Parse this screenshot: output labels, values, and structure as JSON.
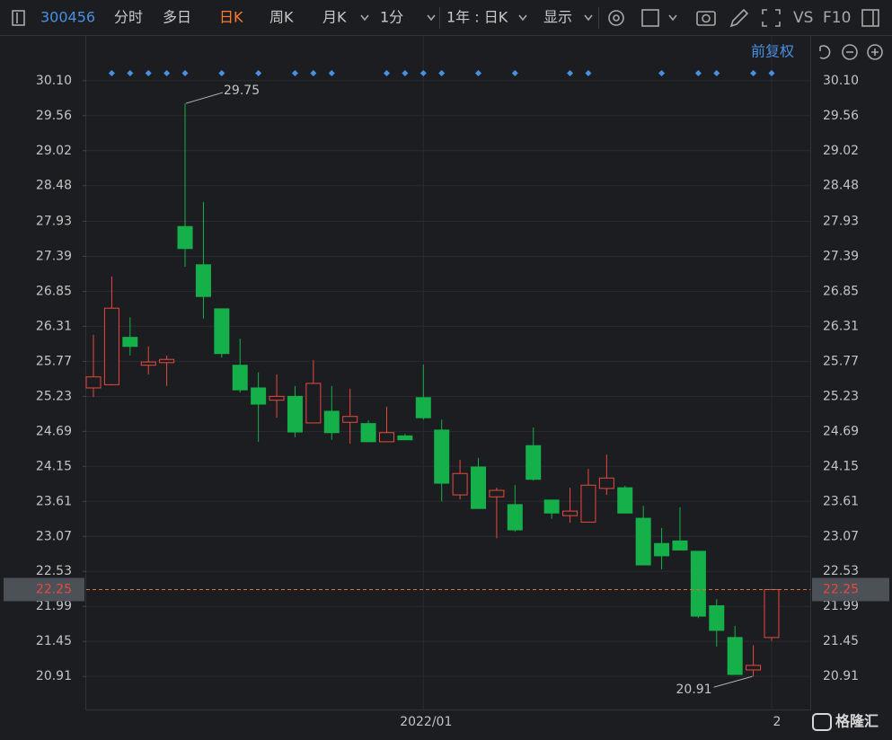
{
  "toolbar": {
    "code": "300456",
    "tabs": [
      "分时",
      "多日",
      "日K",
      "周K",
      "月K"
    ],
    "period": "1分",
    "range": "1年 : 日K",
    "display": "显示",
    "vs": "VS",
    "f10": "F10"
  },
  "adjust": "前复权",
  "logo": "格隆汇",
  "chart_data": {
    "type": "candlestick",
    "categories": [
      null,
      null,
      null,
      null,
      null,
      null,
      null,
      null,
      null,
      null,
      null,
      null,
      null,
      null,
      null,
      null,
      null,
      null,
      "2022/01",
      null,
      null,
      null,
      null,
      null,
      null,
      null,
      null,
      null,
      null,
      null,
      null,
      null,
      null,
      null,
      null,
      null,
      null,
      "2"
    ],
    "open": [
      25.36,
      25.41,
      26.14,
      25.71,
      25.75,
      27.85,
      27.26,
      26.58,
      25.71,
      25.36,
      25.17,
      25.23,
      24.82,
      25.0,
      24.83,
      24.81,
      24.53,
      24.62,
      25.21,
      24.71,
      23.71,
      24.14,
      23.68,
      23.56,
      24.47,
      23.63,
      23.39,
      23.29,
      23.81,
      23.82,
      23.35,
      22.96,
      23.0,
      22.84,
      22.0,
      21.51,
      21.01,
      21.51
    ],
    "high": [
      26.18,
      27.08,
      26.45,
      26.0,
      25.86,
      29.75,
      28.23,
      26.58,
      26.12,
      25.6,
      25.57,
      25.39,
      25.79,
      25.39,
      25.35,
      24.86,
      25.07,
      24.65,
      25.72,
      24.87,
      24.25,
      24.28,
      23.82,
      23.86,
      24.75,
      23.63,
      23.82,
      24.11,
      24.33,
      23.85,
      23.54,
      23.2,
      23.52,
      22.84,
      22.1,
      21.69,
      21.39,
      22.25
    ],
    "low": [
      25.22,
      25.4,
      25.86,
      25.57,
      25.39,
      27.23,
      26.43,
      25.83,
      25.29,
      24.53,
      24.9,
      24.6,
      24.82,
      24.56,
      24.5,
      24.53,
      24.53,
      24.56,
      24.87,
      23.61,
      23.64,
      23.5,
      23.04,
      23.14,
      23.93,
      23.34,
      23.28,
      23.29,
      23.71,
      23.43,
      22.63,
      22.56,
      22.86,
      21.81,
      21.37,
      20.94,
      20.91,
      21.46
    ],
    "close": [
      25.53,
      26.59,
      26.0,
      25.76,
      25.8,
      27.51,
      26.77,
      25.89,
      25.33,
      25.11,
      25.23,
      24.68,
      25.43,
      24.67,
      24.92,
      24.53,
      24.67,
      24.56,
      24.9,
      23.89,
      24.04,
      23.5,
      23.78,
      23.17,
      23.95,
      23.43,
      23.46,
      23.86,
      23.97,
      23.43,
      22.63,
      22.77,
      22.86,
      21.84,
      21.62,
      20.94,
      21.08,
      22.25
    ],
    "up_color": "#e8493f",
    "down_color": "#15b04a",
    "price_line_color": "#e06a3c",
    "ylim": [
      20.4,
      30.79
    ],
    "yticks": [
      {
        "value": 30.1,
        "label": "30.10"
      },
      29.56,
      29.02,
      28.48,
      27.93,
      27.39,
      26.85,
      26.31,
      25.77,
      25.23,
      24.69,
      24.15,
      23.61,
      23.07,
      22.53,
      21.99,
      21.45,
      20.91
    ],
    "grid": true
  }
}
